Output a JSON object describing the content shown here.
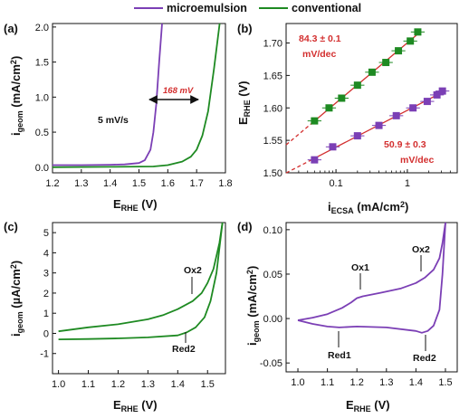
{
  "legend": {
    "items": [
      {
        "label": "microemulsion",
        "color": "#7b3fb5"
      },
      {
        "label": "conventional",
        "color": "#1e8a22"
      }
    ]
  },
  "colors": {
    "microemulsion": "#7b3fb5",
    "conventional": "#1e8a22",
    "fit": "#d32f2f",
    "text": "#111111"
  },
  "chart_data": [
    {
      "panel": "(a)",
      "type": "line",
      "xlabel": "E_RHE (V)",
      "ylabel": "i_geom (mA/cm²)",
      "xlim": [
        1.2,
        1.8
      ],
      "ylim": [
        -0.08,
        2.05
      ],
      "xticks": [
        "1.2",
        "1.3",
        "1.4",
        "1.5",
        "1.6",
        "1.7",
        "1.8"
      ],
      "yticks": [
        "0.0",
        "0.5",
        "1.0",
        "1.5",
        "2.0"
      ],
      "annotations": {
        "scan_rate": "5 mV/s",
        "shift": "168 mV"
      },
      "series": [
        {
          "name": "microemulsion",
          "x": [
            1.2,
            1.3,
            1.4,
            1.45,
            1.5,
            1.52,
            1.54,
            1.55,
            1.56,
            1.57,
            1.58
          ],
          "y": [
            0.03,
            0.03,
            0.035,
            0.04,
            0.06,
            0.1,
            0.25,
            0.5,
            0.9,
            1.5,
            2.05
          ]
        },
        {
          "name": "conventional",
          "x": [
            1.2,
            1.4,
            1.55,
            1.6,
            1.65,
            1.68,
            1.7,
            1.72,
            1.74,
            1.76,
            1.78
          ],
          "y": [
            0.0,
            0.005,
            0.01,
            0.03,
            0.08,
            0.15,
            0.25,
            0.45,
            0.8,
            1.4,
            2.05
          ]
        }
      ]
    },
    {
      "panel": "(b)",
      "type": "scatter",
      "xlabel": "i_ECSA (mA/cm²)",
      "ylabel": "E_RHE (V)",
      "xscale": "log",
      "xlim": [
        0.02,
        5
      ],
      "ylim": [
        1.5,
        1.73
      ],
      "xticks": [
        "0.1",
        "1"
      ],
      "yticks": [
        "1.50",
        "1.55",
        "1.60",
        "1.65",
        "1.70"
      ],
      "annotations": {
        "slope_conventional": "84.3 ± 0.1",
        "slope_microemulsion": "50.9 ± 0.3",
        "unit": "mV/dec"
      },
      "series": [
        {
          "name": "conventional",
          "x": [
            0.05,
            0.08,
            0.12,
            0.2,
            0.32,
            0.5,
            0.75,
            1.1,
            1.4
          ],
          "y": [
            1.58,
            1.6,
            1.615,
            1.635,
            1.655,
            1.67,
            1.688,
            1.703,
            1.717
          ]
        },
        {
          "name": "microemulsion",
          "x": [
            0.05,
            0.09,
            0.2,
            0.4,
            0.7,
            1.2,
            1.9,
            2.6,
            3.1
          ],
          "y": [
            1.52,
            1.54,
            1.557,
            1.573,
            1.588,
            1.6,
            1.61,
            1.62,
            1.626
          ]
        }
      ]
    },
    {
      "panel": "(c)",
      "type": "line",
      "xlabel": "E_RHE (V)",
      "ylabel": "i_geom (µA/cm²)",
      "xlim": [
        0.98,
        1.56
      ],
      "ylim": [
        -2.0,
        5.5
      ],
      "xticks": [
        "1.0",
        "1.1",
        "1.2",
        "1.3",
        "1.4",
        "1.5"
      ],
      "yticks": [
        "-1",
        "0",
        "1",
        "2",
        "3",
        "4",
        "5"
      ],
      "annotations": {
        "ox": "Ox2",
        "red": "Red2"
      },
      "series": [
        {
          "name": "conventional (anodic)",
          "x": [
            1.0,
            1.1,
            1.2,
            1.3,
            1.35,
            1.4,
            1.45,
            1.48,
            1.5,
            1.52,
            1.54,
            1.55
          ],
          "y": [
            0.1,
            0.3,
            0.45,
            0.7,
            0.9,
            1.2,
            1.6,
            2.0,
            2.5,
            3.2,
            4.5,
            5.5
          ]
        },
        {
          "name": "conventional (cathodic)",
          "x": [
            1.55,
            1.53,
            1.51,
            1.49,
            1.46,
            1.43,
            1.4,
            1.3,
            1.2,
            1.1,
            1.0
          ],
          "y": [
            5.5,
            3.0,
            1.6,
            0.8,
            0.3,
            0.05,
            -0.1,
            -0.2,
            -0.25,
            -0.28,
            -0.3
          ]
        }
      ]
    },
    {
      "panel": "(d)",
      "type": "line",
      "xlabel": "E_RHE (V)",
      "ylabel": "i_geom (mA/cm²)",
      "xlim": [
        0.96,
        1.54
      ],
      "ylim": [
        -0.06,
        0.108
      ],
      "xticks": [
        "1.0",
        "1.1",
        "1.2",
        "1.3",
        "1.4",
        "1.5"
      ],
      "yticks": [
        "-0.05",
        "0.00",
        "0.05",
        "0.10"
      ],
      "annotations": {
        "ox1": "Ox1",
        "ox2": "Ox2",
        "red1": "Red1",
        "red2": "Red2"
      },
      "series": [
        {
          "name": "microemulsion (anodic)",
          "x": [
            1.0,
            1.05,
            1.1,
            1.15,
            1.18,
            1.2,
            1.22,
            1.28,
            1.35,
            1.4,
            1.43,
            1.46,
            1.48,
            1.49,
            1.5
          ],
          "y": [
            -0.002,
            0.001,
            0.005,
            0.012,
            0.018,
            0.023,
            0.025,
            0.029,
            0.034,
            0.04,
            0.046,
            0.055,
            0.068,
            0.085,
            0.108
          ]
        },
        {
          "name": "microemulsion (cathodic)",
          "x": [
            1.5,
            1.49,
            1.48,
            1.46,
            1.44,
            1.42,
            1.4,
            1.3,
            1.2,
            1.14,
            1.1,
            1.05,
            1.0
          ],
          "y": [
            0.108,
            0.05,
            0.01,
            -0.008,
            -0.014,
            -0.016,
            -0.014,
            -0.01,
            -0.009,
            -0.01,
            -0.009,
            -0.006,
            -0.002
          ]
        }
      ]
    }
  ]
}
